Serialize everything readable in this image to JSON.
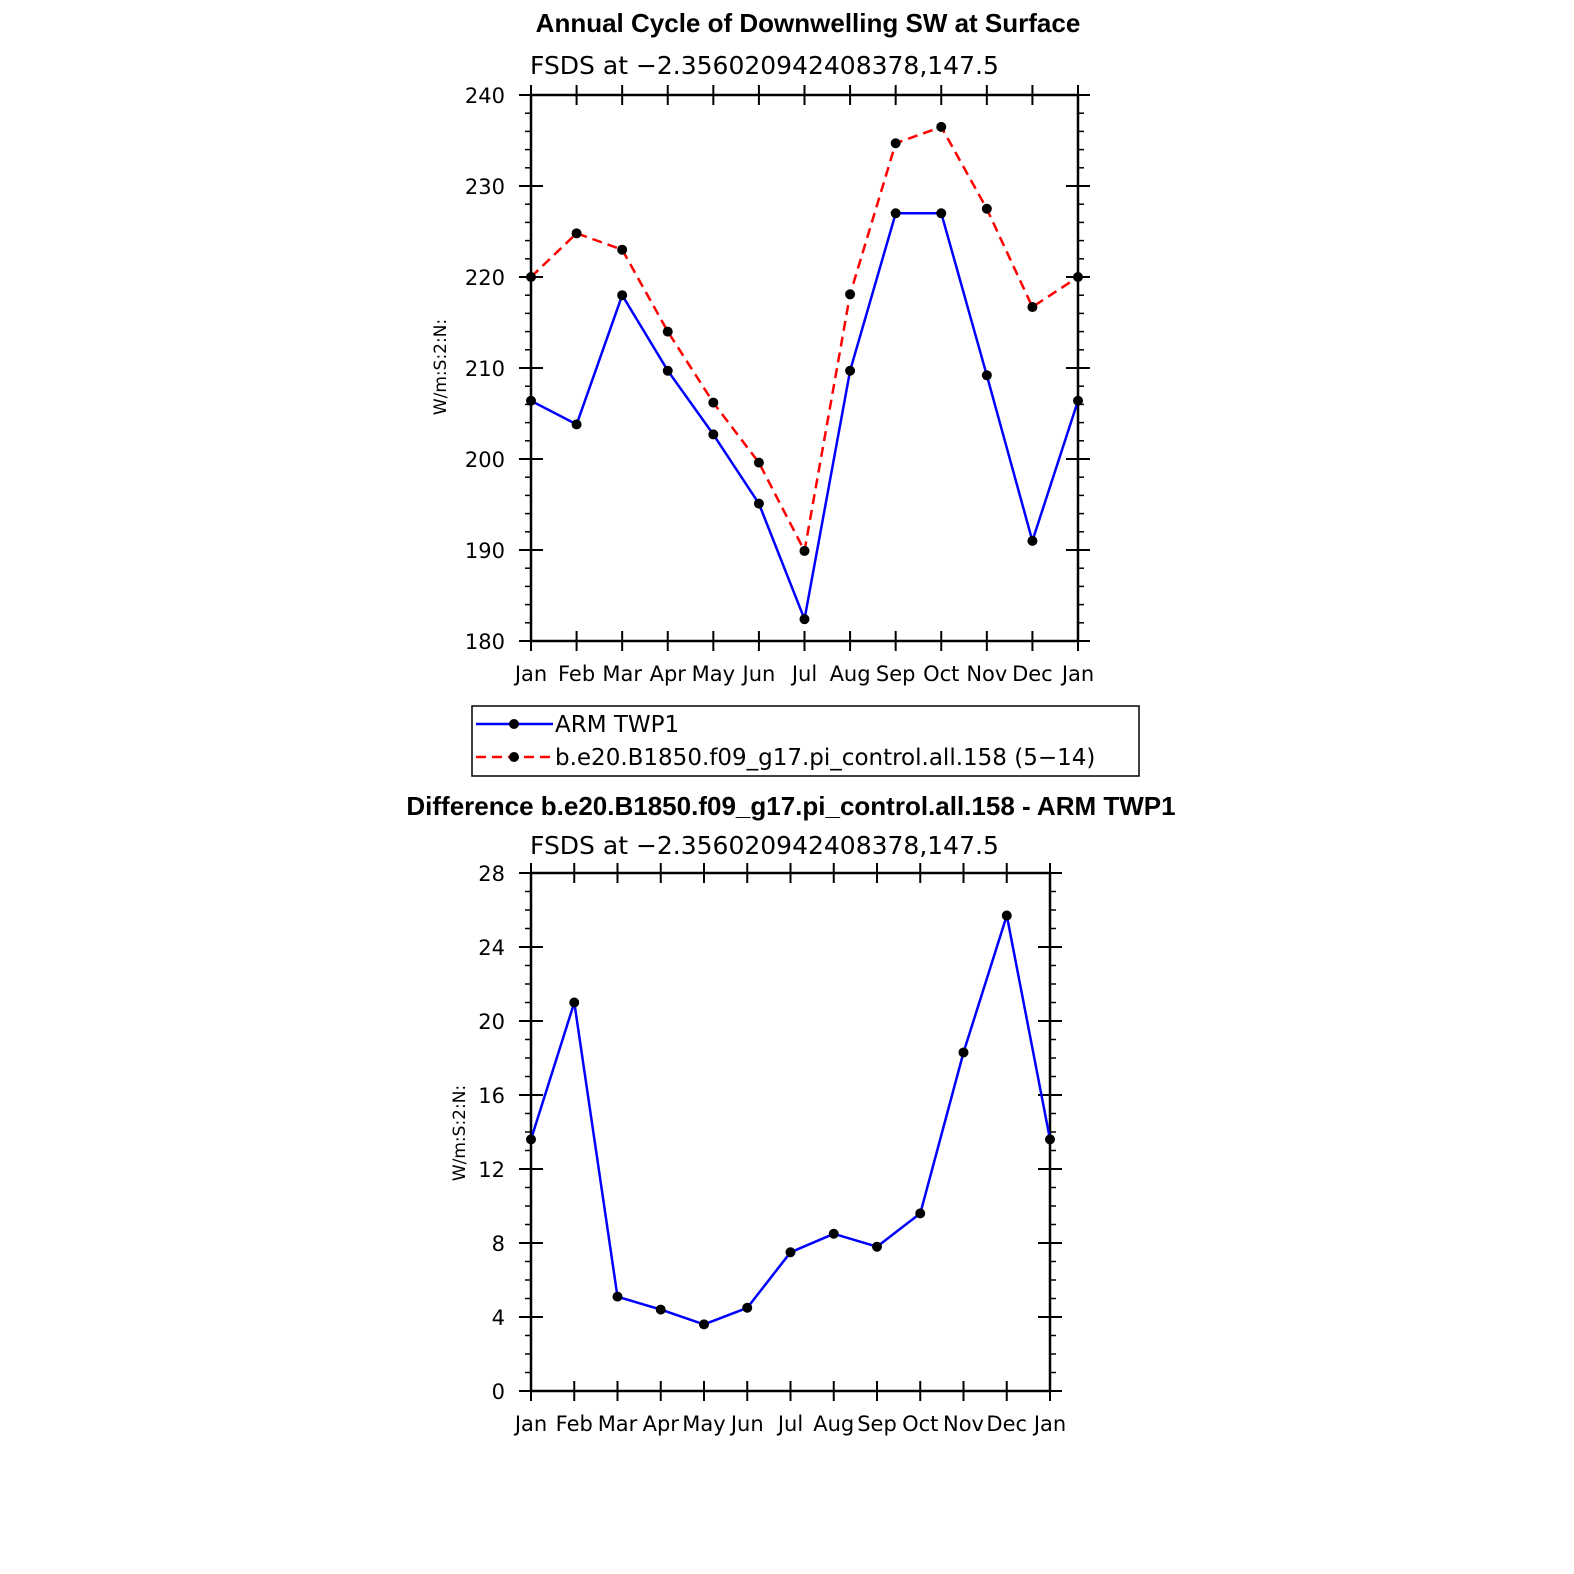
{
  "chart_data": [
    {
      "type": "line",
      "title": "Annual Cycle of Downwelling SW at Surface",
      "subtitle": "FSDS at −2.356020942408378,147.5",
      "ylabel": "W/m:S:2:N:",
      "ylim": [
        180,
        240
      ],
      "yticks": [
        "180",
        "190",
        "200",
        "210",
        "220",
        "230",
        "240"
      ],
      "categories": [
        "Jan",
        "Feb",
        "Mar",
        "Apr",
        "May",
        "Jun",
        "Jul",
        "Aug",
        "Sep",
        "Oct",
        "Nov",
        "Dec",
        "Jan"
      ],
      "series": [
        {
          "name": "ARM TWP1",
          "color": "#0000ff",
          "dash": "solid",
          "values": [
            206.4,
            203.8,
            218.0,
            209.7,
            202.7,
            195.1,
            182.4,
            209.7,
            227.0,
            227.0,
            209.2,
            191.0,
            206.4
          ]
        },
        {
          "name": "b.e20.B1850.f09_g17.pi_control.all.158 (5−14)",
          "color": "#ff0000",
          "dash": "dashed",
          "values": [
            220.0,
            224.8,
            223.0,
            214.0,
            206.2,
            199.6,
            189.9,
            218.1,
            234.7,
            236.5,
            227.5,
            216.7,
            220.0
          ]
        }
      ],
      "legend": "bottom",
      "grid": false
    },
    {
      "type": "line",
      "title": "Difference b.e20.B1850.f09_g17.pi_control.all.158 - ARM TWP1",
      "subtitle": "FSDS at −2.356020942408378,147.5",
      "ylabel": "W/m:S:2:N:",
      "ylim": [
        0,
        28
      ],
      "yticks": [
        "0",
        "4",
        "8",
        "12",
        "16",
        "20",
        "24",
        "28"
      ],
      "categories": [
        "Jan",
        "Feb",
        "Mar",
        "Apr",
        "May",
        "Jun",
        "Jul",
        "Aug",
        "Sep",
        "Oct",
        "Nov",
        "Dec",
        "Jan"
      ],
      "series": [
        {
          "color": "#0000ff",
          "dash": "solid",
          "values": [
            13.6,
            21.0,
            5.1,
            4.4,
            3.6,
            4.5,
            7.5,
            8.5,
            7.8,
            9.6,
            18.3,
            25.7,
            13.6
          ]
        }
      ],
      "legend": "none",
      "grid": false
    }
  ]
}
